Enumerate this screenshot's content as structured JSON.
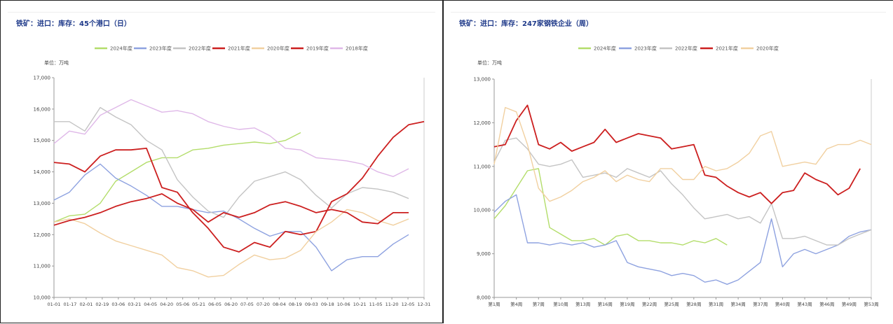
{
  "colors": {
    "green": "#b3dd6a",
    "blue": "#8ea2e0",
    "gray": "#c4c4c4",
    "red": "#cc1f1f",
    "beige": "#f1d0a0",
    "pink": "#dfb8e8"
  },
  "chart_data": [
    {
      "type": "line",
      "title": "铁矿：进口：库存：45个港口（日）",
      "unit": "单位：万吨",
      "ylim": [
        10000,
        17000
      ],
      "y_ticks": [
        "10,000",
        "11,000",
        "12,000",
        "13,000",
        "14,000",
        "15,000",
        "16,000",
        "17,000"
      ],
      "x_labels": [
        "01-01",
        "01-17",
        "02-01",
        "02-19",
        "03-06",
        "03-21",
        "04-05",
        "04-20",
        "05-06",
        "05-21",
        "06-05",
        "06-20",
        "07-05",
        "07-20",
        "08-04",
        "08-19",
        "09-03",
        "09-18",
        "10-06",
        "10-21",
        "11-05",
        "11-20",
        "12-05",
        "12-31"
      ],
      "series": [
        {
          "name": "2024年度",
          "color": "green",
          "values": [
            12400,
            12600,
            12650,
            13000,
            13700,
            14000,
            14300,
            14450,
            14450,
            14700,
            14750,
            14850,
            14900,
            14950,
            14900,
            15000,
            15250
          ]
        },
        {
          "name": "2023年度",
          "color": "blue",
          "values": [
            13100,
            13350,
            13900,
            14250,
            13800,
            13550,
            13250,
            12900,
            12900,
            12800,
            12700,
            12750,
            12500,
            12200,
            11950,
            12100,
            12100,
            11600,
            10850,
            11200,
            11300,
            11300,
            11700,
            12000
          ]
        },
        {
          "name": "2022年度",
          "color": "gray",
          "values": [
            15600,
            15600,
            15300,
            16050,
            15750,
            15500,
            15000,
            14700,
            13750,
            13200,
            12750,
            12550,
            13200,
            13700,
            13850,
            14000,
            13750,
            13250,
            12850,
            13300,
            13500,
            13450,
            13350,
            13150
          ]
        },
        {
          "name": "2021年度",
          "color": "red",
          "values": [
            14300,
            14250,
            14000,
            14500,
            14700,
            14700,
            14750,
            13500,
            13350,
            12700,
            12200,
            11600,
            11450,
            11750,
            11600,
            12100,
            12000,
            12100,
            13050,
            13300,
            13800,
            14500,
            15100,
            15500,
            15600
          ]
        },
        {
          "name": "2020年度",
          "color": "beige",
          "values": [
            12400,
            12500,
            12350,
            12050,
            11800,
            11650,
            11500,
            11350,
            10950,
            10850,
            10650,
            10700,
            11050,
            11350,
            11200,
            11250,
            11500,
            12100,
            12400,
            12800,
            12700,
            12450,
            12300,
            12500
          ]
        },
        {
          "name": "2019年度",
          "color": "red",
          "values": [
            12300,
            12450,
            12550,
            12700,
            12900,
            13050,
            13150,
            13300,
            13000,
            12800,
            12400,
            12700,
            12550,
            12700,
            12950,
            13050,
            12900,
            12700,
            12800,
            12700,
            12400,
            12350,
            12700,
            12700
          ]
        },
        {
          "name": "2018年度",
          "color": "pink",
          "values": [
            14900,
            15300,
            15200,
            15800,
            16050,
            16300,
            16100,
            15900,
            15950,
            15850,
            15600,
            15450,
            15350,
            15400,
            15150,
            14750,
            14700,
            14450,
            14400,
            14350,
            14250,
            14000,
            13850,
            14100
          ]
        }
      ]
    },
    {
      "type": "line",
      "title": "铁矿：进口：库存：247家钢铁企业（周）",
      "unit": "单位：万吨",
      "ylim": [
        8000,
        13000
      ],
      "y_ticks": [
        "8,000",
        "9,000",
        "10,000",
        "11,000",
        "12,000",
        "13,000"
      ],
      "x_labels": [
        "第1周",
        "第4周",
        "第7周",
        "第10周",
        "第13周",
        "第16周",
        "第19周",
        "第22周",
        "第25周",
        "第28周",
        "第31周",
        "第34周",
        "第37周",
        "第40周",
        "第43周",
        "第46周",
        "第49周",
        "第53周"
      ],
      "series": [
        {
          "name": "2024年度",
          "color": "green",
          "values": [
            9800,
            10100,
            10500,
            10900,
            10950,
            9600,
            9450,
            9300,
            9300,
            9350,
            9200,
            9400,
            9450,
            9300,
            9300,
            9250,
            9250,
            9200,
            9300,
            9250,
            9350,
            9200
          ]
        },
        {
          "name": "2023年度",
          "color": "blue",
          "values": [
            9950,
            10200,
            10350,
            9250,
            9250,
            9200,
            9250,
            9200,
            9250,
            9150,
            9200,
            9300,
            8800,
            8700,
            8650,
            8600,
            8500,
            8550,
            8500,
            8350,
            8400,
            8300,
            8400,
            8600,
            8800,
            9800,
            8700,
            9000,
            9100,
            9000,
            9100,
            9200,
            9400,
            9500,
            9550
          ]
        },
        {
          "name": "2022年度",
          "color": "gray",
          "values": [
            11100,
            11600,
            11650,
            11400,
            11050,
            11000,
            11050,
            11150,
            10750,
            10800,
            10850,
            10750,
            10950,
            10850,
            10750,
            10900,
            10600,
            10350,
            10050,
            9800,
            9850,
            9900,
            9800,
            9850,
            9700,
            10150,
            9350,
            9350,
            9400,
            9300,
            9200,
            9200,
            9350,
            9450,
            9550
          ]
        },
        {
          "name": "2021年度",
          "color": "red",
          "values": [
            11450,
            11500,
            12050,
            12400,
            11500,
            11400,
            11550,
            11350,
            11450,
            11550,
            11850,
            11550,
            11650,
            11750,
            11700,
            11650,
            11400,
            11450,
            11500,
            10800,
            10750,
            10550,
            10400,
            10300,
            10400,
            10150,
            10400,
            10450,
            10850,
            10700,
            10600,
            10350,
            10500,
            10950
          ]
        },
        {
          "name": "2020年度",
          "color": "beige",
          "values": [
            11050,
            12350,
            12250,
            11500,
            10500,
            10200,
            10300,
            10450,
            10650,
            10750,
            10900,
            10650,
            10800,
            10700,
            10650,
            10950,
            10950,
            10700,
            10700,
            11000,
            10900,
            10950,
            11100,
            11300,
            11700,
            11800,
            11000,
            11050,
            11100,
            11050,
            11400,
            11500,
            11500,
            11600,
            11500
          ]
        }
      ]
    }
  ]
}
